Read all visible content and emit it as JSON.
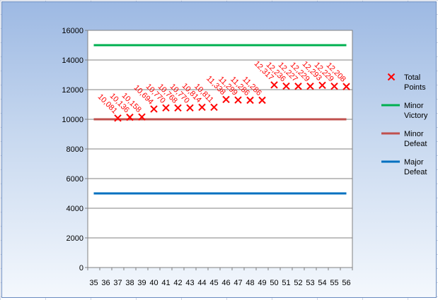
{
  "chart_data": {
    "type": "line",
    "x": [
      35,
      36,
      37,
      38,
      39,
      40,
      41,
      42,
      43,
      44,
      45,
      46,
      47,
      48,
      49,
      50,
      51,
      52,
      53,
      54,
      55,
      56
    ],
    "xlim": [
      35,
      56
    ],
    "ylim": [
      0,
      16000
    ],
    "yticks": [
      0,
      2000,
      4000,
      6000,
      8000,
      10000,
      12000,
      14000,
      16000
    ],
    "grid": "horizontal",
    "legend_position": "right",
    "series": [
      {
        "name": "Total Points",
        "style": "markers",
        "marker": "x",
        "color": "#ff0000",
        "x": [
          37,
          38,
          39,
          40,
          41,
          42,
          43,
          44,
          45,
          46,
          47,
          48,
          49,
          50,
          51,
          52,
          53,
          54,
          55,
          56
        ],
        "values": [
          10081,
          10136,
          10158,
          10694,
          10770,
          10768,
          10770,
          10814,
          10811,
          11338,
          11299,
          11286,
          11286,
          12317,
          12236,
          12227,
          12229,
          12293,
          12229,
          12208
        ],
        "labels": [
          "10,081",
          "10,136",
          "10,158",
          "10,694",
          "10,770",
          "10,768",
          "10,770",
          "10,814",
          "10,811",
          "11,338",
          "11,299",
          "11,286",
          "11,286",
          "12,317",
          "12,236",
          "12,227",
          "12,229",
          "12,293",
          "12,229",
          "12,208"
        ]
      },
      {
        "name": "Minor Victory",
        "style": "line",
        "color": "#00b050",
        "x": [
          35,
          56
        ],
        "values": [
          15000,
          15000
        ]
      },
      {
        "name": "Minor Defeat",
        "style": "line",
        "color": "#c0504d",
        "x": [
          35,
          56
        ],
        "values": [
          10000,
          10000
        ]
      },
      {
        "name": "Major Defeat",
        "style": "line",
        "color": "#0070c0",
        "x": [
          35,
          56
        ],
        "values": [
          5000,
          5000
        ]
      }
    ],
    "legend": [
      {
        "lines": [
          "Total",
          "Points"
        ],
        "series": 0
      },
      {
        "lines": [
          "Minor",
          "Victory"
        ],
        "series": 1
      },
      {
        "lines": [
          "Minor",
          "Defeat"
        ],
        "series": 2
      },
      {
        "lines": [
          "Major",
          "Defeat"
        ],
        "series": 3
      }
    ]
  }
}
